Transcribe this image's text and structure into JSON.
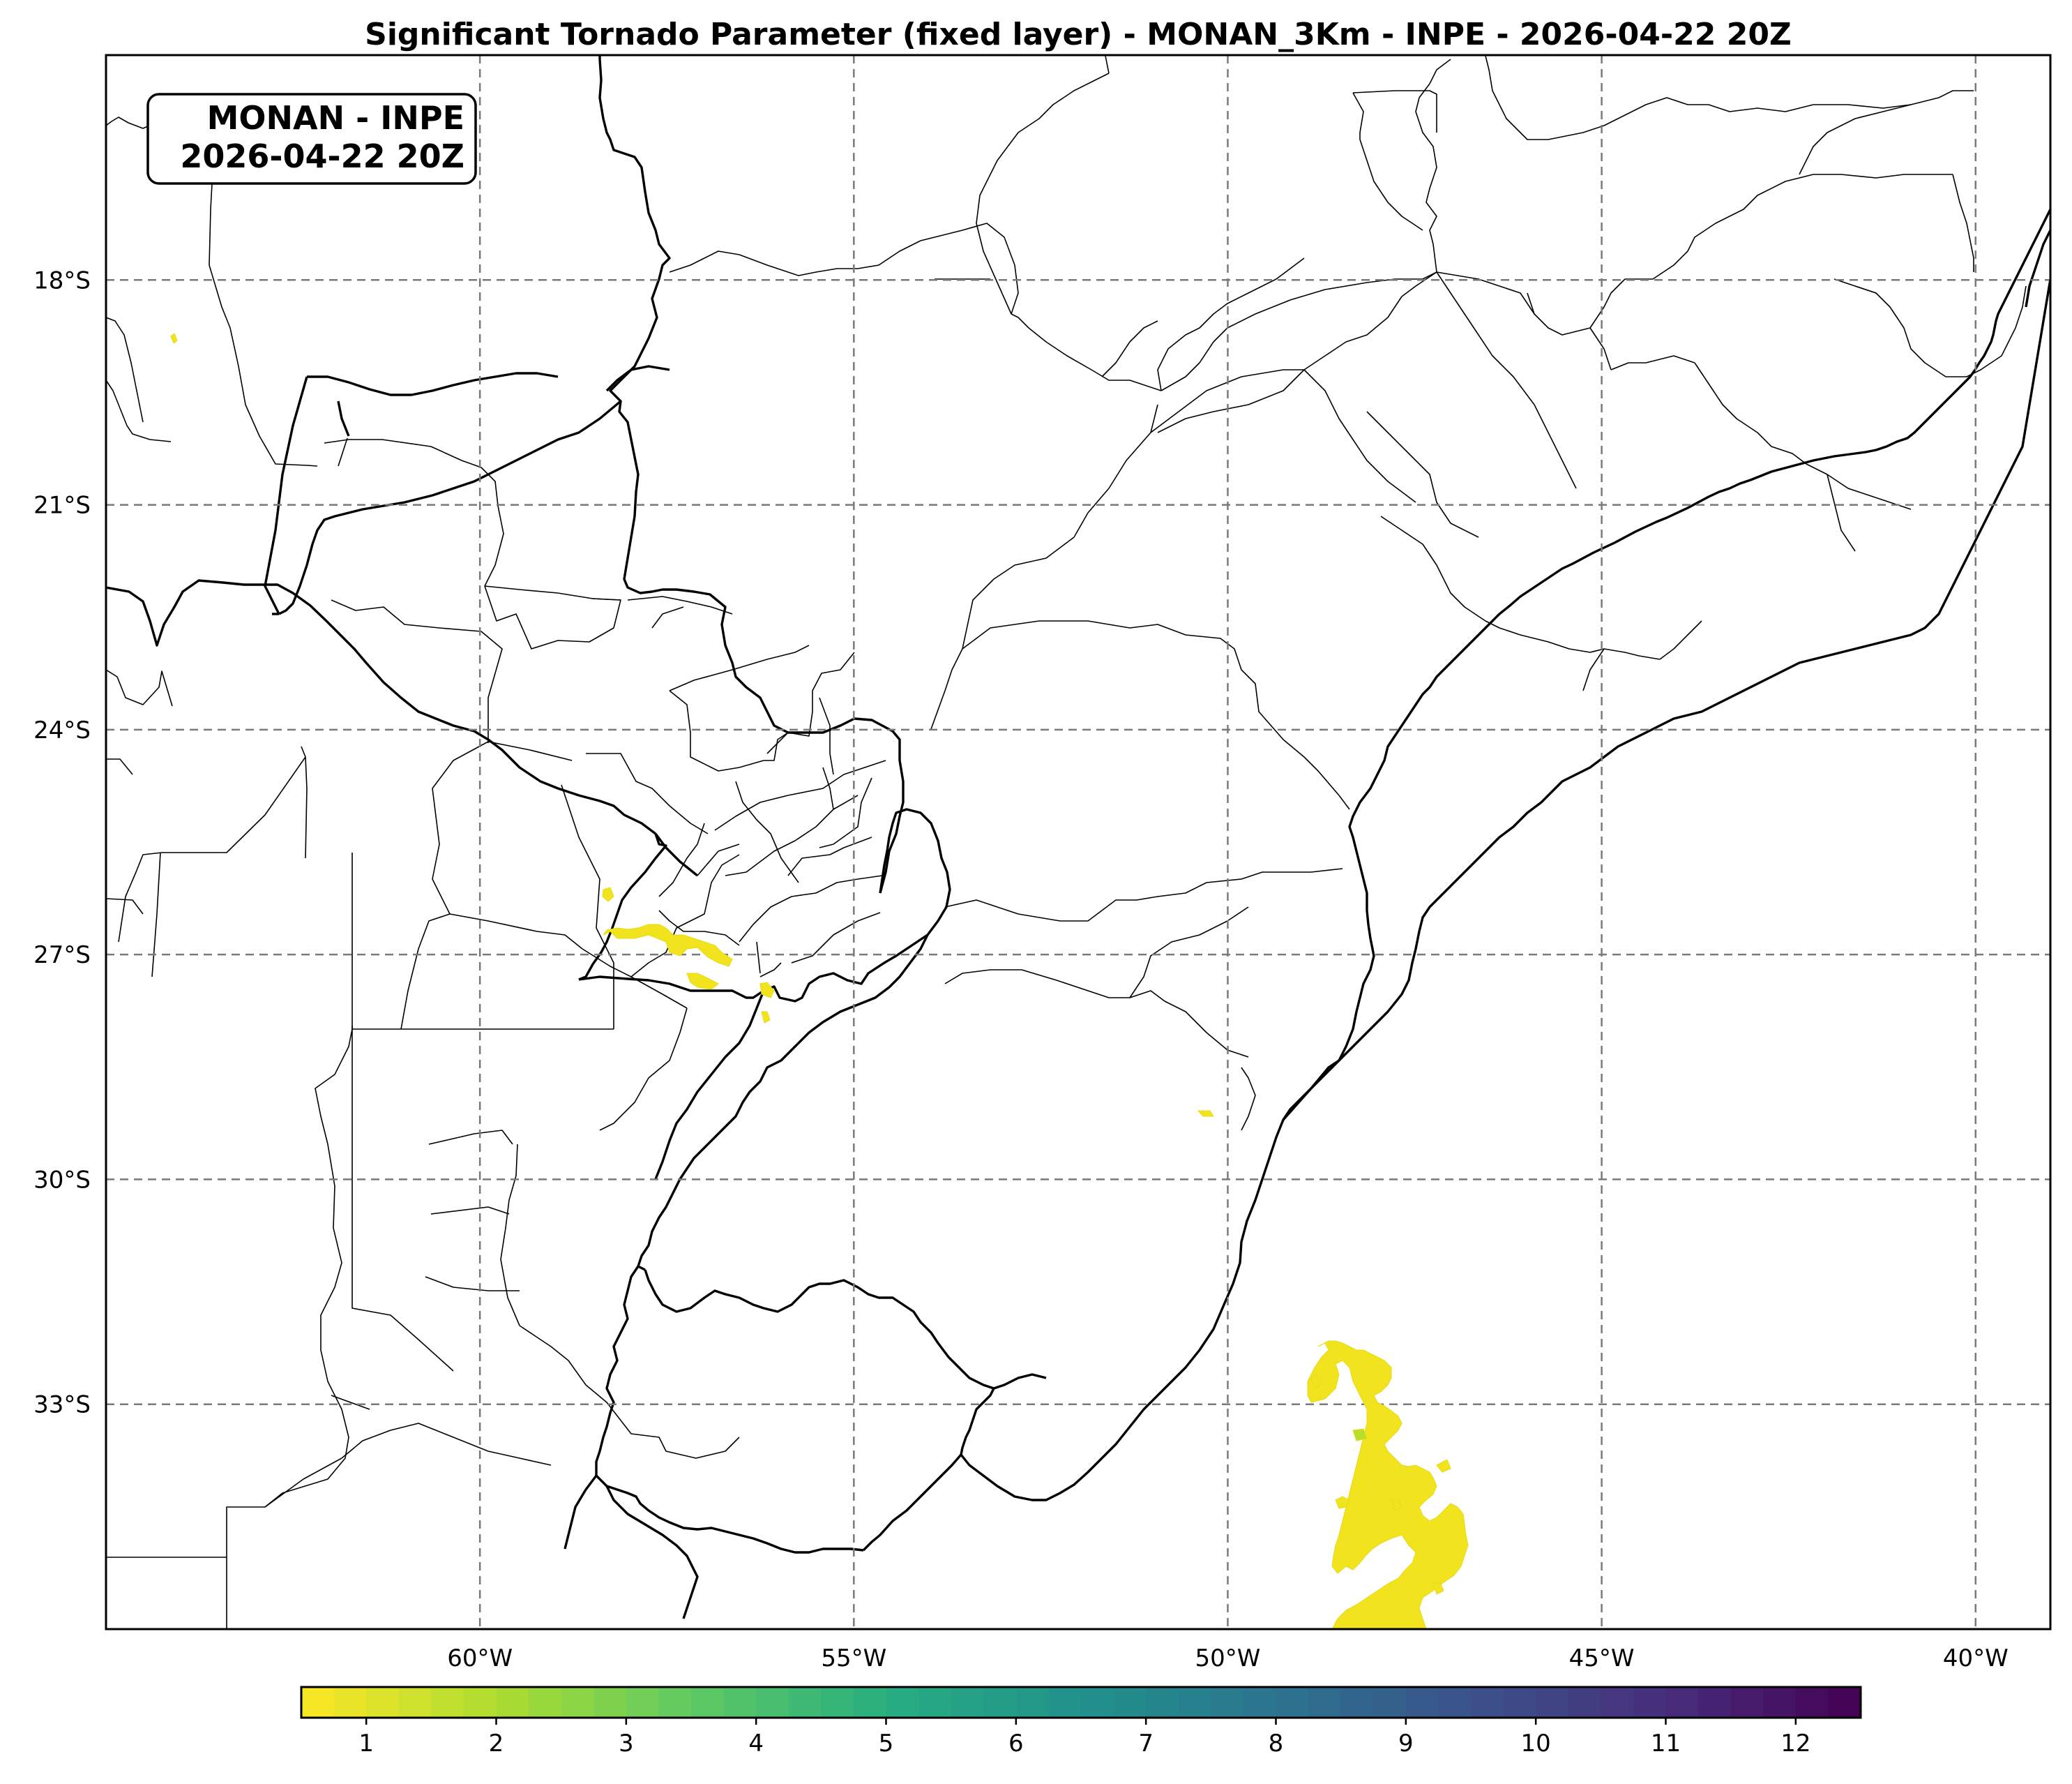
{
  "title": "Significant Tornado Parameter (fixed layer) - MONAN_3Km - INPE - 2026-04-22 20Z",
  "badge": {
    "line1": "MONAN - INPE",
    "line2": "2026-04-22 20Z"
  },
  "map": {
    "lon_range": [
      -65,
      -39
    ],
    "lat_range": [
      -36,
      -15
    ],
    "lon_ticks": [
      {
        "value": -60,
        "label": "60°W"
      },
      {
        "value": -55,
        "label": "55°W"
      },
      {
        "value": -50,
        "label": "50°W"
      },
      {
        "value": -45,
        "label": "45°W"
      },
      {
        "value": -40,
        "label": "40°W"
      }
    ],
    "lat_ticks": [
      {
        "value": -18,
        "label": "18°S"
      },
      {
        "value": -21,
        "label": "21°S"
      },
      {
        "value": -24,
        "label": "24°S"
      },
      {
        "value": -27,
        "label": "27°S"
      },
      {
        "value": -30,
        "label": "30°S"
      },
      {
        "value": -33,
        "label": "33°S"
      }
    ],
    "gridlines": true
  },
  "colorbar": {
    "cmap": "viridis_r",
    "range": [
      0.5,
      12.5
    ],
    "levels": 48,
    "ticks": [
      {
        "value": 1,
        "label": "1"
      },
      {
        "value": 2,
        "label": "2"
      },
      {
        "value": 3,
        "label": "3"
      },
      {
        "value": 4,
        "label": "4"
      },
      {
        "value": 5,
        "label": "5"
      },
      {
        "value": 6,
        "label": "6"
      },
      {
        "value": 7,
        "label": "7"
      },
      {
        "value": 8,
        "label": "8"
      },
      {
        "value": 9,
        "label": "9"
      },
      {
        "value": 10,
        "label": "10"
      },
      {
        "value": 11,
        "label": "11"
      },
      {
        "value": 12,
        "label": "12"
      }
    ]
  }
}
